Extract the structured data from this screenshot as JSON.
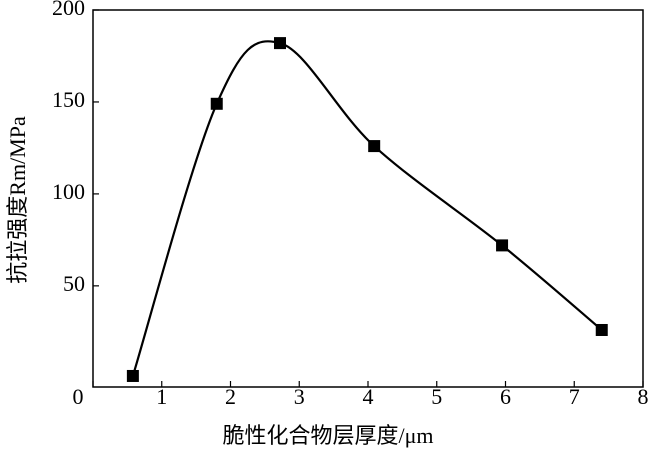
{
  "chart_data": {
    "type": "scatter",
    "x_label": "脆性化合物层厚度/μm",
    "y_label": "抗拉强度Rm/MPa",
    "x": [
      0.58,
      1.8,
      2.72,
      4.09,
      5.95,
      7.4
    ],
    "series": [
      {
        "color": "#000000",
        "values": [
          1,
          149,
          182,
          126,
          72,
          26
        ]
      }
    ],
    "xlim": [
      0,
      8
    ],
    "xticks": [
      0,
      1,
      2,
      3,
      4,
      5,
      6,
      7,
      8
    ],
    "ylim": [
      -5,
      200
    ],
    "yticks": [
      50,
      100,
      150,
      200
    ],
    "smooth_line": true,
    "grid": false
  }
}
